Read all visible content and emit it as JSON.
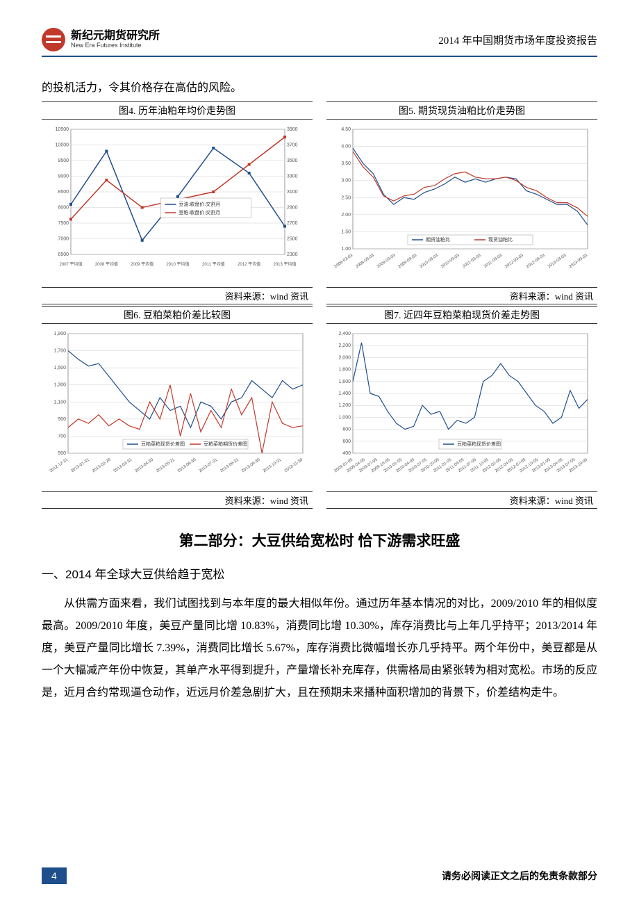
{
  "header": {
    "logo_cn": "新纪元期货研究所",
    "logo_en": "New Era Futures Institute",
    "report_title": "2014 年中国期货市场年度投资报告"
  },
  "intro_line": "的投机活力，令其价格存在高估的风险。",
  "chart4": {
    "title": "图4. 历年油粕年均价走势图",
    "type": "line",
    "source": "资料来源：wind 资讯",
    "categories": [
      "2007 平均值",
      "2008 平均值",
      "2009 平均值",
      "2010 平均值",
      "2011 平均值",
      "2012 平均值",
      "2013 平均值"
    ],
    "y_left": {
      "min": 6500,
      "max": 10500,
      "ticks": [
        6500,
        7000,
        7500,
        8000,
        8500,
        9000,
        9500,
        10000,
        10500
      ]
    },
    "y_right": {
      "min": 2300,
      "max": 3900,
      "ticks": [
        2300,
        2500,
        2700,
        2900,
        3100,
        3300,
        3500,
        3700,
        3900
      ]
    },
    "series": [
      {
        "name": "豆油:收盘价:交割月",
        "color": "#1f4e8c",
        "axis": "left",
        "values": [
          8100,
          9800,
          6950,
          8350,
          9900,
          9100,
          7400
        ]
      },
      {
        "name": "豆粕:收盘价:交割月",
        "color": "#c0392b",
        "axis": "right",
        "values": [
          2750,
          3250,
          2900,
          3000,
          3100,
          3450,
          3800
        ]
      }
    ],
    "grid_color": "#d0d0d0",
    "legend_pos": "middle"
  },
  "chart5": {
    "title": "图5. 期货现货油粕比价走势图",
    "type": "line",
    "source": "资料来源：wind 资讯",
    "x_labels": [
      "2008-03-03",
      "2008-09-03",
      "2009-03-03",
      "2009-09-03",
      "2010-03-03",
      "2010-09-03",
      "2011-03-03",
      "2011-09-03",
      "2012-03-03",
      "2012-09-03",
      "2013-03-03",
      "2013-09-03"
    ],
    "y": {
      "min": 1.0,
      "max": 4.5,
      "ticks": [
        1.0,
        1.5,
        2.0,
        2.5,
        3.0,
        3.5,
        4.0,
        4.5
      ]
    },
    "series": [
      {
        "name": "期货油粕比",
        "color": "#1f4e8c",
        "values": [
          3.95,
          3.5,
          3.2,
          2.6,
          2.3,
          2.5,
          2.45,
          2.65,
          2.75,
          2.9,
          3.1,
          2.95,
          3.05,
          2.95,
          3.05,
          3.1,
          3.05,
          2.7,
          2.6,
          2.45,
          2.3,
          2.3,
          2.1,
          1.7
        ]
      },
      {
        "name": "现货油粕比",
        "color": "#c0392b",
        "values": [
          3.85,
          3.4,
          3.1,
          2.55,
          2.4,
          2.55,
          2.6,
          2.8,
          2.85,
          3.05,
          3.2,
          3.25,
          3.1,
          3.05,
          3.05,
          3.1,
          3.0,
          2.8,
          2.7,
          2.5,
          2.35,
          2.35,
          2.2,
          1.95
        ]
      }
    ],
    "grid_color": "#d0d0d0",
    "legend_pos": "bottom"
  },
  "chart6": {
    "title": "图6. 豆粕菜粕价差比较图",
    "type": "line",
    "source": "资料来源：wind 资讯",
    "x_labels": [
      "2012-12-31",
      "2013-01-31",
      "2013-02-28",
      "2013-03-31",
      "2013-04-30",
      "2013-05-31",
      "2013-06-30",
      "2013-07-31",
      "2013-08-31",
      "2013-09-30",
      "2013-10-31",
      "2013-11-30"
    ],
    "y": {
      "min": 500,
      "max": 1900,
      "ticks": [
        500,
        700,
        900,
        1100,
        1300,
        1500,
        1700,
        1900
      ]
    },
    "series": [
      {
        "name": "豆粕菜粕现货价差图",
        "color": "#1f4e8c",
        "values": [
          1700,
          1600,
          1520,
          1550,
          1400,
          1250,
          1100,
          1000,
          900,
          1150,
          1000,
          1050,
          800,
          1100,
          1050,
          900,
          1100,
          1150,
          1350,
          1250,
          1150,
          1350,
          1250,
          1300
        ]
      },
      {
        "name": "豆粕菜粕期货价差图",
        "color": "#c0392b",
        "values": [
          800,
          900,
          850,
          950,
          820,
          900,
          820,
          780,
          1100,
          900,
          1300,
          700,
          1200,
          750,
          1000,
          800,
          1250,
          950,
          1150,
          500,
          1100,
          850,
          800,
          820
        ]
      }
    ],
    "grid_color": "#d0d0d0",
    "legend_pos": "bottom"
  },
  "chart7": {
    "title": "图7. 近四年豆粕菜粕现货价差走势图",
    "type": "line",
    "source": "资料来源：wind 资讯",
    "x_labels": [
      "2009-01-05",
      "2009-04-05",
      "2009-07-05",
      "2009-10-05",
      "2010-01-05",
      "2010-04-05",
      "2010-07-05",
      "2010-10-05",
      "2011-01-05",
      "2011-04-05",
      "2011-07-05",
      "2011-10-05",
      "2012-01-05",
      "2012-04-05",
      "2012-07-05",
      "2012-10-05",
      "2013-01-05",
      "2013-04-05",
      "2013-07-05",
      "2013-10-05"
    ],
    "y": {
      "min": 400,
      "max": 2400,
      "ticks": [
        400,
        600,
        800,
        1000,
        1200,
        1400,
        1600,
        1800,
        2000,
        2200,
        2400
      ]
    },
    "series": [
      {
        "name": "豆粕菜粕现货价差图",
        "color": "#1f4e8c",
        "values": [
          1600,
          2250,
          1400,
          1350,
          1100,
          900,
          800,
          850,
          1200,
          1050,
          1100,
          800,
          950,
          900,
          1000,
          1600,
          1700,
          1900,
          1700,
          1600,
          1400,
          1200,
          1100,
          900,
          1000,
          1450,
          1150,
          1300
        ]
      }
    ],
    "grid_color": "#d0d0d0",
    "legend_pos": "bottom"
  },
  "section_title": "第二部分：大豆供给宽松时 恰下游需求旺盛",
  "subhead": "一、2014 年全球大豆供给趋于宽松",
  "body_text": "从供需方面来看，我们试图找到与本年度的最大相似年份。通过历年基本情况的对比，2009/2010 年的相似度最高。2009/2010 年度，美豆产量同比增 10.83%，消费同比增 10.30%，库存消费比与上年几乎持平；2013/2014 年度，美豆产量同比增长 7.39%，消费同比增长 5.67%，库存消费比微幅增长亦几乎持平。两个年份中，美豆都是从一个大幅减产年份中恢复，其单产水平得到提升，产量增长补充库存，供需格局由紧张转为相对宽松。市场的反应是，近月合约常现逼仓动作，近远月价差急剧扩大，且在预期未来播种面积增加的背景下，价差结构走牛。",
  "footer": {
    "page": "4",
    "disclaimer": "请务必阅读正文之后的免责条款部分"
  }
}
